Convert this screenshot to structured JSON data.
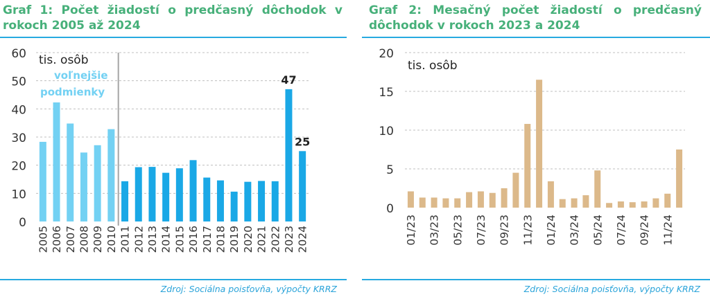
{
  "charts": {
    "left": {
      "title": "Graf 1: Počet žiadostí o predčasný dôchodok v rokoch 2005 až 2024",
      "source": "Zdroj: Sociálna poisťovňa, výpočty KRRZ"
    },
    "right": {
      "title": "Graf 2: Mesačný počet žiadostí o predčasný dôchodok v rokoch 2023 a 2024",
      "source": "Zdroj: Sociálna poisťovňa, výpočty KRRZ"
    }
  },
  "chart_data": [
    {
      "type": "bar",
      "title": "Graf 1: Počet žiadostí o predčasný dôchodok v rokoch 2005 až 2024",
      "unit_label": "tis. osôb",
      "annotation": [
        "voľnejšie",
        "podmienky"
      ],
      "categories": [
        "2005",
        "2006",
        "2007",
        "2008",
        "2009",
        "2010",
        "2011",
        "2012",
        "2013",
        "2014",
        "2015",
        "2016",
        "2017",
        "2018",
        "2019",
        "2020",
        "2021",
        "2022",
        "2023",
        "2024"
      ],
      "values": [
        28.3,
        42.3,
        34.8,
        24.5,
        27.1,
        32.8,
        14.3,
        19.3,
        19.4,
        17.3,
        18.9,
        21.8,
        15.6,
        14.6,
        10.6,
        14.1,
        14.4,
        14.3,
        47,
        25
      ],
      "data_labels": {
        "2023": "47",
        "2024": "25"
      },
      "yticks": [
        0,
        10,
        20,
        30,
        40,
        50,
        60
      ],
      "ylim": [
        0,
        60
      ],
      "grid": true,
      "colors": {
        "early": "#73d1f3",
        "late": "#1aa8e6",
        "divider": "#a6a6a6",
        "grid": "#bfbfbf"
      }
    },
    {
      "type": "bar",
      "title": "Graf 2: Mesačný počet žiadostí o predčasný dôchodok v rokoch 2023 a 2024",
      "unit_label": "tis. osôb",
      "categories": [
        "01/23",
        "02/23",
        "03/23",
        "04/23",
        "05/23",
        "06/23",
        "07/23",
        "08/23",
        "09/23",
        "10/23",
        "11/23",
        "12/23",
        "01/24",
        "02/24",
        "03/24",
        "04/24",
        "05/24",
        "06/24",
        "07/24",
        "08/24",
        "09/24",
        "10/24",
        "11/24",
        "12/24"
      ],
      "tick_labels": [
        "01/23",
        "03/23",
        "05/23",
        "07/23",
        "09/23",
        "11/23",
        "01/24",
        "03/24",
        "05/24",
        "07/24",
        "09/24",
        "11/24"
      ],
      "values": [
        2.1,
        1.3,
        1.3,
        1.2,
        1.2,
        2.0,
        2.1,
        1.9,
        2.5,
        4.5,
        10.8,
        16.5,
        3.4,
        1.1,
        1.2,
        1.6,
        4.8,
        0.6,
        0.8,
        0.7,
        0.8,
        1.2,
        1.8,
        7.5
      ],
      "yticks": [
        0,
        5,
        10,
        15,
        20
      ],
      "ylim": [
        0,
        20
      ],
      "grid": true,
      "colors": {
        "bar": "#dcb98a",
        "grid": "#bfbfbf"
      }
    }
  ]
}
